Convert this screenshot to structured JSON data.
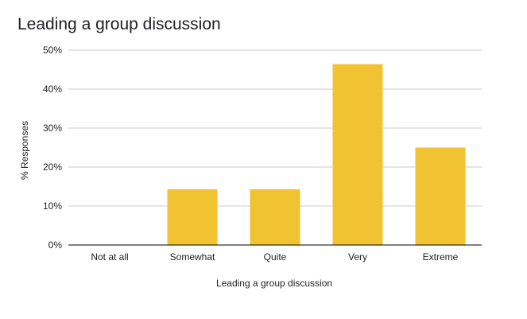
{
  "chart_data": {
    "type": "bar",
    "title": "Leading a group discussion",
    "xlabel": "Leading a group discussion",
    "ylabel": "% Responses",
    "categories": [
      "Not at all",
      "Somewhat",
      "Quite",
      "Very",
      "Extreme"
    ],
    "values": [
      0,
      14.3,
      14.3,
      46.4,
      25.0
    ],
    "ylim": [
      0,
      50
    ],
    "yticks": [
      0,
      10,
      20,
      30,
      40,
      50
    ],
    "ytick_labels": [
      "0%",
      "10%",
      "20%",
      "30%",
      "40%",
      "50%"
    ],
    "grid": true,
    "legend": "none",
    "colors": {
      "bar": "#f1c232",
      "grid": "#cccccc",
      "axis": "#000000",
      "text": "#202124"
    }
  }
}
